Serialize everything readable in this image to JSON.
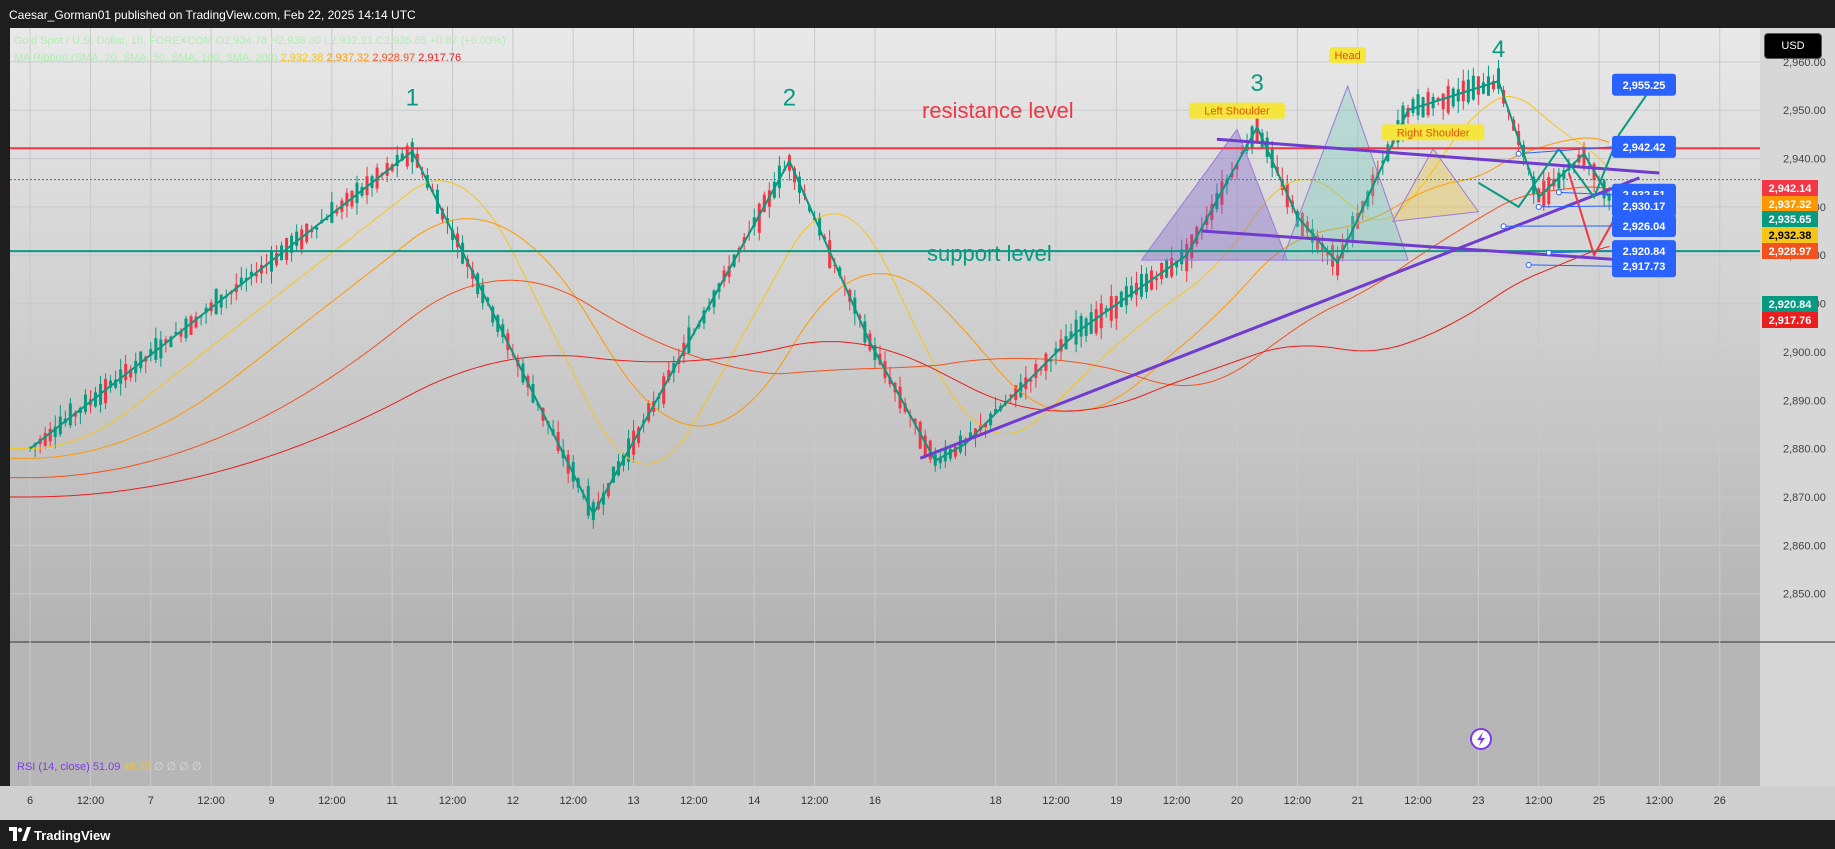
{
  "header": {
    "publisher_line": "Caesar_Gorman01 published on TradingView.com, Feb 22, 2025 14:14 UTC"
  },
  "legend": {
    "symbol": "Gold Spot / U.S. Dollar, 1h, FOREXCOM",
    "open": "O2,934.78",
    "high": "H2,938.30",
    "low": "L2,932.21",
    "close": "C2,935.65",
    "change": "+0.87 (+0.03%)",
    "ma_label": "MA Ribbon (SMA, 20, SMA, 50, SMA, 100, SMA, 200)",
    "ma_values": [
      "2,932.38",
      "2,937.32",
      "2,928.97",
      "2,917.76"
    ],
    "ma_colors": [
      "#f5c518",
      "#ff9800",
      "#f4511e",
      "#e91e1e"
    ]
  },
  "toolbar": {
    "currency_button": "USD"
  },
  "rsi": {
    "label": "RSI (14, close)",
    "value": "51.09",
    "ma_value": "48.35",
    "extra": "∅ ∅ ∅ ∅"
  },
  "footer": {
    "brand": "TradingView"
  },
  "chart_data": {
    "type": "candlestick",
    "symbol": "XAUUSD",
    "timeframe": "1h",
    "y_axis": {
      "ticks": [
        2850,
        2860,
        2870,
        2880,
        2890,
        2900,
        2910,
        2920,
        2930,
        2940,
        2950,
        2960
      ],
      "tick_labels": [
        "2,850.00",
        "2,860.00",
        "2,870.00",
        "2,880.00",
        "2,890.00",
        "2,900.00",
        "2,910.00",
        "2,920.00",
        "2,930.00",
        "2,940.00",
        "2,950.00",
        "2,960.00"
      ],
      "range": [
        2840,
        2967
      ]
    },
    "x_axis": {
      "labels": [
        "6",
        "12:00",
        "7",
        "12:00",
        "9",
        "12:00",
        "11",
        "12:00",
        "12",
        "12:00",
        "13",
        "12:00",
        "14",
        "12:00",
        "16",
        "18",
        "12:00",
        "19",
        "12:00",
        "20",
        "12:00",
        "21",
        "12:00",
        "23",
        "12:00",
        "25",
        "12:00",
        "26"
      ],
      "label_index": [
        0,
        12,
        24,
        36,
        48,
        60,
        72,
        84,
        96,
        108,
        120,
        132,
        144,
        156,
        168,
        192,
        204,
        216,
        228,
        240,
        252,
        264,
        276,
        288,
        300,
        312,
        324,
        336
      ],
      "start_index": -4,
      "end_index": 344
    },
    "price_badges": [
      {
        "value": 2942.14,
        "label": "2,942.14",
        "color": "#f23645"
      },
      {
        "value": 2937.32,
        "label": "2,937.32",
        "color": "#ff9800"
      },
      {
        "value": 2935.65,
        "label": "2,935.65",
        "color": "#089981"
      },
      {
        "value": 2932.38,
        "label": "2,932.38",
        "color": "#f5c518"
      },
      {
        "value": 2928.97,
        "label": "2,928.97",
        "color": "#f4511e"
      },
      {
        "value": 2920.84,
        "label": "2,920.84",
        "color": "#089981"
      },
      {
        "value": 2917.76,
        "label": "2,917.76",
        "color": "#e91e1e"
      }
    ],
    "levels": {
      "resistance": {
        "value": 2942.14,
        "label": "resistance level",
        "color": "#f23645"
      },
      "support": {
        "value": 2920.84,
        "label": "support level",
        "color": "#089981"
      },
      "last_close": 2935.65
    },
    "zigzag": {
      "color": "#089981",
      "points": [
        [
          0,
          2880
        ],
        [
          76,
          2941.5
        ],
        [
          112,
          2866.5
        ],
        [
          151,
          2939.5
        ],
        [
          167,
          2902
        ],
        [
          180,
          2877.5
        ],
        [
          186,
          2881
        ],
        [
          208,
          2904
        ],
        [
          230,
          2920
        ],
        [
          244,
          2946.5
        ],
        [
          252,
          2928
        ],
        [
          260,
          2918.5
        ],
        [
          274,
          2950
        ],
        [
          292,
          2956
        ],
        [
          300,
          2932
        ],
        [
          309,
          2941
        ],
        [
          314,
          2932
        ]
      ],
      "labels": [
        {
          "text": "1",
          "i": 76,
          "y": 2951
        },
        {
          "text": "2",
          "i": 151,
          "y": 2951
        },
        {
          "text": "3",
          "i": 244,
          "y": 2954
        },
        {
          "text": "4",
          "i": 292,
          "y": 2961
        }
      ]
    },
    "trendlines": [
      {
        "name": "rising-support-line",
        "points": [
          [
            177,
            2878
          ],
          [
            320,
            2936
          ]
        ],
        "color": "#6f3ccf"
      },
      {
        "name": "upper-neckline",
        "points": [
          [
            236,
            2944
          ],
          [
            324,
            2937
          ]
        ],
        "color": "#6f3ccf"
      },
      {
        "name": "lower-neckline",
        "points": [
          [
            233,
            2925
          ],
          [
            324,
            2918.5
          ]
        ],
        "color": "#6f3ccf"
      }
    ],
    "patterns": [
      {
        "name": "left-shoulder",
        "label": "Left Shoulder",
        "points": [
          [
            221,
            2919
          ],
          [
            240,
            2946
          ],
          [
            250,
            2919
          ]
        ],
        "label_at": [
          240,
          2949.5
        ]
      },
      {
        "name": "head",
        "label": "Head",
        "points": [
          [
            249,
            2919
          ],
          [
            262,
            2955
          ],
          [
            274,
            2919
          ]
        ],
        "label_at": [
          262,
          2961
        ]
      },
      {
        "name": "right-shoulder",
        "label": "Right Shoulder",
        "points": [
          [
            271,
            2927
          ],
          [
            279,
            2942
          ],
          [
            288,
            2929
          ]
        ],
        "label_at": [
          279,
          2945
        ]
      }
    ],
    "projection": {
      "up_path": [
        [
          288,
          2935
        ],
        [
          296,
          2930
        ],
        [
          304,
          2942
        ],
        [
          311,
          2932
        ],
        [
          316,
          2945
        ],
        [
          323,
          2955.5
        ]
      ],
      "down_path": [
        [
          306,
          2937
        ],
        [
          311,
          2920
        ],
        [
          318,
          2933
        ]
      ],
      "up_color": "#089981",
      "down_color": "#f23645"
    },
    "callouts": [
      {
        "label": "2,955.25",
        "from": [
          323,
          2955.5
        ],
        "value": 2955.25
      },
      {
        "label": "2,942.42",
        "from": [
          296,
          2941
        ],
        "value": 2942.42
      },
      {
        "label": "2,932.51",
        "from": [
          304,
          2933
        ],
        "value": 2932.51
      },
      {
        "label": "2,930.17",
        "from": [
          300,
          2930
        ],
        "value": 2930.17
      },
      {
        "label": "2,926.04",
        "from": [
          293,
          2926
        ],
        "value": 2926.04
      },
      {
        "label": "2,920.84",
        "from": [
          302,
          2920.5
        ],
        "value": 2920.84
      },
      {
        "label": "2,917.73",
        "from": [
          298,
          2918
        ],
        "value": 2917.73
      }
    ]
  }
}
